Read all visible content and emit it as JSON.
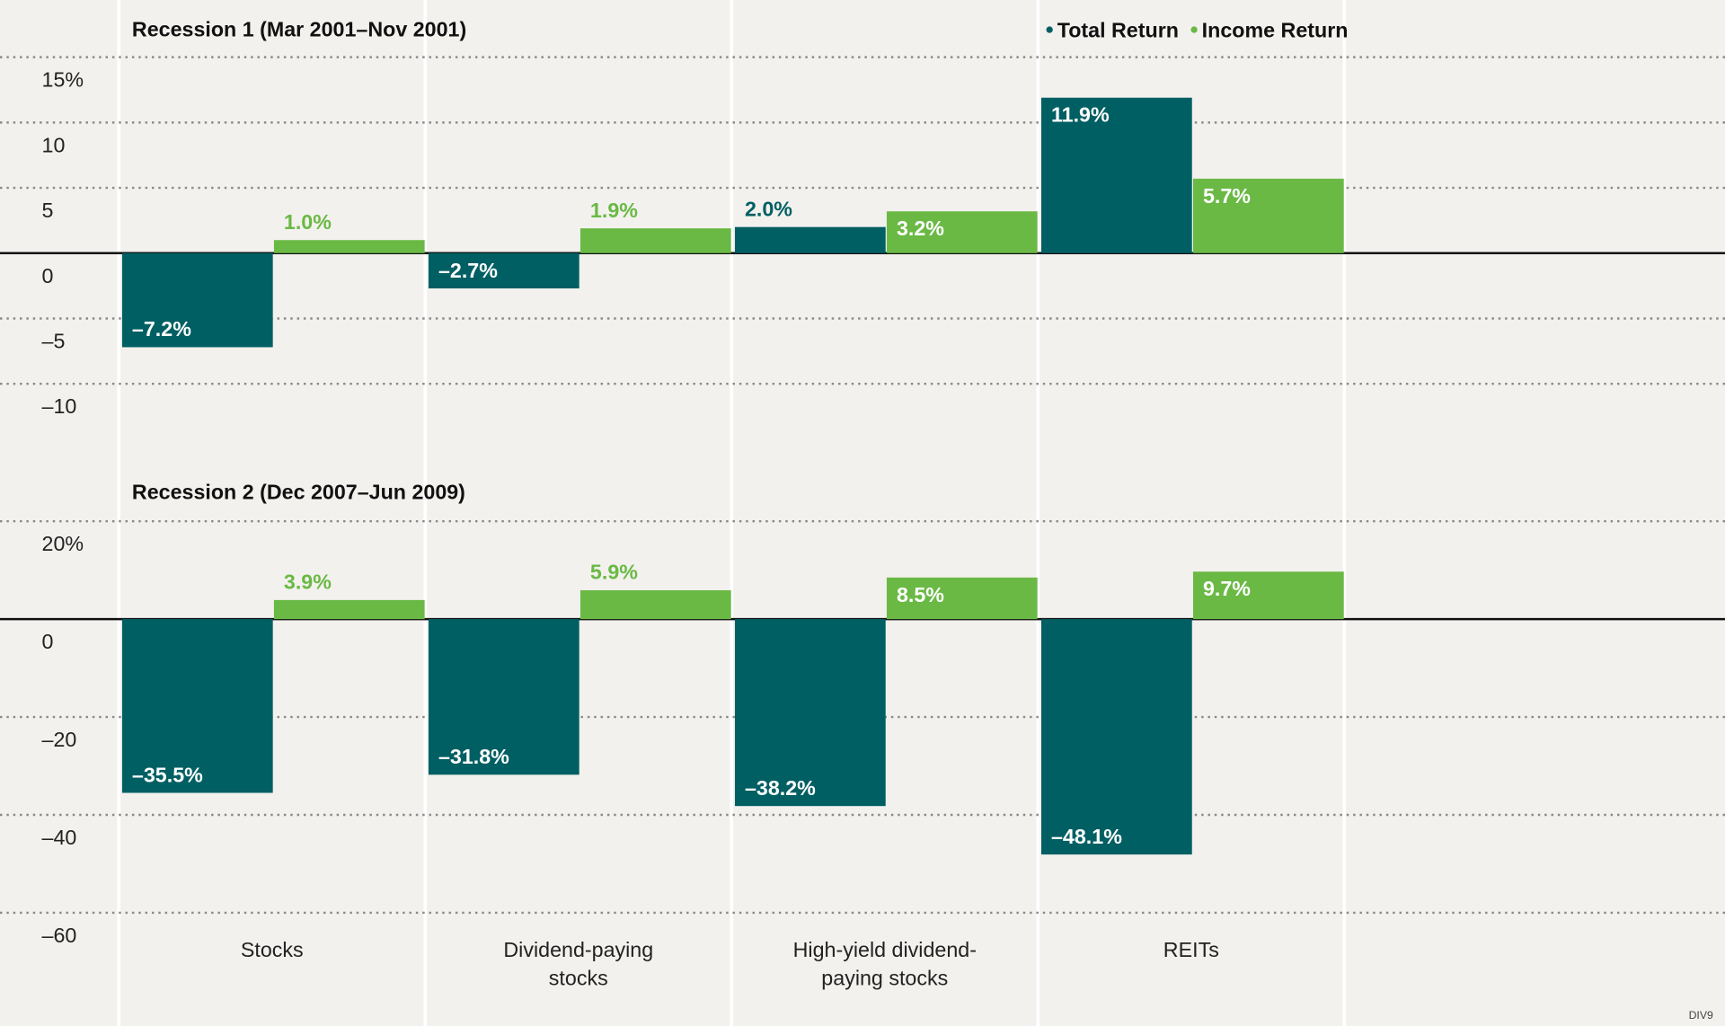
{
  "chart_data": [
    {
      "type": "bar",
      "title": "Recession 1 (Mar 2001–Nov 2001)",
      "series": [
        {
          "name": "Total Return",
          "color": "#005f63",
          "values": [
            -7.2,
            -2.7,
            2.0,
            11.9
          ],
          "value_labels": [
            "–7.2%",
            "–2.7%",
            "2.0%",
            "11.9%"
          ]
        },
        {
          "name": "Income Return",
          "color": "#6ab945",
          "values": [
            1.0,
            1.9,
            3.2,
            5.7
          ],
          "value_labels": [
            "1.0%",
            "1.9%",
            "3.2%",
            "5.7%"
          ]
        }
      ],
      "ylim": [
        -10,
        15
      ],
      "yticks": [
        {
          "value": 15,
          "label": "15%"
        },
        10,
        5,
        0,
        {
          "value": -5,
          "label": "–5"
        },
        {
          "value": -10,
          "label": "–10"
        }
      ],
      "grid": true,
      "legend": "top"
    },
    {
      "type": "bar",
      "title": "Recession 2 (Dec 2007–Jun 2009)",
      "categories": [
        "Stocks",
        "Dividend-paying stocks",
        "High-yield dividend-paying stocks",
        "REITs"
      ],
      "series": [
        {
          "color": "#005f63",
          "values": [
            -35.5,
            -31.8,
            -38.2,
            -48.1
          ],
          "value_labels": [
            "–35.5%",
            "–31.8%",
            "–38.2%",
            "–48.1%"
          ]
        },
        {
          "color": "#6ab945",
          "values": [
            3.9,
            5.9,
            8.5,
            9.7
          ],
          "value_labels": [
            "3.9%",
            "5.9%",
            "8.5%",
            "9.7%"
          ]
        }
      ],
      "ylim": [
        -60,
        20
      ],
      "yticks": [
        {
          "value": 20,
          "label": "20%"
        },
        0,
        {
          "value": -20,
          "label": "–20"
        },
        {
          "value": -40,
          "label": "–40"
        },
        {
          "value": -60,
          "label": "–60"
        }
      ],
      "grid": true
    }
  ],
  "footnote": "DIV9"
}
